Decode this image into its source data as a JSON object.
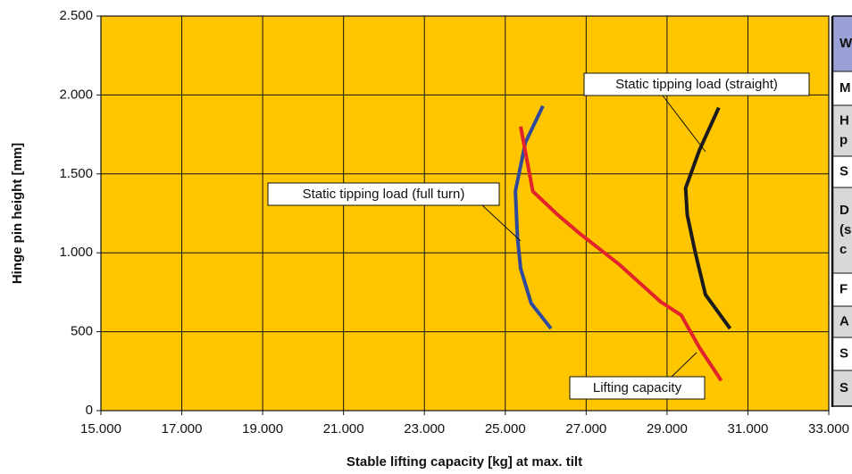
{
  "chart_data": {
    "type": "line",
    "xlabel": "Stable lifting capacity [kg] at max. tilt",
    "ylabel": "Hinge pin height [mm]",
    "xlim": [
      15000,
      33000
    ],
    "xticks": [
      {
        "value": 15000,
        "label": "15.000"
      },
      {
        "value": 17000,
        "label": "17.000"
      },
      {
        "value": 19000,
        "label": "19.000"
      },
      {
        "value": 21000,
        "label": "21.000"
      },
      {
        "value": 23000,
        "label": "23.000"
      },
      {
        "value": 25000,
        "label": "25.000"
      },
      {
        "value": 27000,
        "label": "27.000"
      },
      {
        "value": 29000,
        "label": "29.000"
      },
      {
        "value": 31000,
        "label": "31.000"
      },
      {
        "value": 33000,
        "label": "33.000"
      }
    ],
    "ylim": [
      0,
      2500
    ],
    "yticks": [
      0,
      500,
      {
        "value": 1000,
        "label": "1.000"
      },
      {
        "value": 1500,
        "label": "1.500"
      },
      {
        "value": 2000,
        "label": "2.000"
      },
      {
        "value": 2500,
        "label": "2.500"
      }
    ],
    "grid": true,
    "series": [
      {
        "name": "Static tipping load (full turn)",
        "color": "#2f4a9c",
        "x": [
          26130,
          25640,
          25380,
          25300,
          25250,
          25500,
          25930
        ],
        "values": [
          520,
          680,
          900,
          1100,
          1390,
          1700,
          1930
        ]
      },
      {
        "name": "Lifting capacity",
        "color": "#e3232b",
        "x": [
          30340,
          29800,
          29350,
          28840,
          27800,
          26850,
          26300,
          25680,
          25380
        ],
        "values": [
          190,
          400,
          605,
          690,
          930,
          1120,
          1240,
          1390,
          1800
        ]
      },
      {
        "name": "Static tipping load (straight)",
        "color": "#1b1b1b",
        "x": [
          30560,
          29950,
          29700,
          29500,
          29460,
          29800,
          30280
        ],
        "values": [
          520,
          735,
          1000,
          1240,
          1410,
          1650,
          1920
        ]
      }
    ]
  },
  "table": {
    "header": "W",
    "rows": [
      [
        "M"
      ],
      [
        "H",
        "p"
      ],
      [
        "S"
      ],
      [
        "D",
        "(s",
        "c"
      ],
      [
        "F"
      ],
      [
        "A"
      ],
      [
        "S"
      ],
      [
        "S"
      ]
    ]
  }
}
